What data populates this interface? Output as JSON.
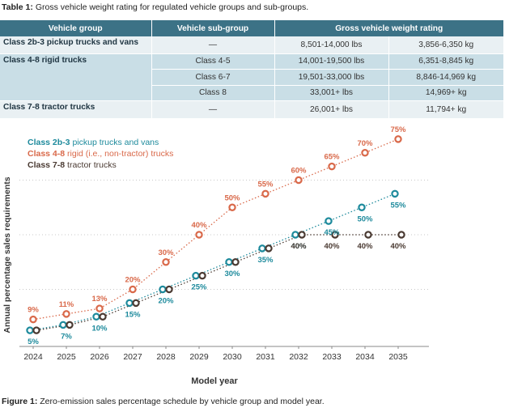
{
  "table": {
    "caption_label": "Table 1:",
    "caption_text": "Gross vehicle weight rating for regulated vehicle groups and sub-groups.",
    "headers": [
      "Vehicle group",
      "Vehicle sub-group",
      "Gross vehicle weight rating"
    ],
    "rows": [
      {
        "group": "Class 2b-3 pickup trucks and vans",
        "subgroup": "—",
        "lbs": "8,501-14,000 lbs",
        "kg": "3,856-6,350 kg"
      },
      {
        "group": "Class 4-8 rigid trucks",
        "subgroup": "Class 4-5",
        "lbs": "14,001-19,500 lbs",
        "kg": "6,351-8,845 kg"
      },
      {
        "group": "",
        "subgroup": "Class 6-7",
        "lbs": "19,501-33,000 lbs",
        "kg": "8,846-14,969 kg"
      },
      {
        "group": "",
        "subgroup": "Class 8",
        "lbs": "33,001+ lbs",
        "kg": "14,969+ kg"
      },
      {
        "group": "Class 7-8 tractor trucks",
        "subgroup": "—",
        "lbs": "26,001+ lbs",
        "kg": "11,794+ kg"
      }
    ]
  },
  "figure": {
    "caption_label": "Figure 1:",
    "caption_text": "Zero-emission sales percentage schedule by vehicle group and model year."
  },
  "chart_data": {
    "type": "line",
    "xlabel": "Model year",
    "ylabel": "Annual percentage sales requirements",
    "x": [
      2024,
      2025,
      2026,
      2027,
      2028,
      2029,
      2030,
      2031,
      2032,
      2033,
      2034,
      2035
    ],
    "ylim": [
      0,
      80
    ],
    "grid": "horizontal dotted",
    "legend_position": "top-left",
    "series": [
      {
        "name": "Class 2b-3 pickup trucks and vans",
        "bold": "Class 2b-3",
        "rest": " pickup trucks and vans",
        "color": "#1d8a9c",
        "values": [
          5,
          7,
          10,
          15,
          20,
          25,
          30,
          35,
          40,
          45,
          50,
          55
        ],
        "labels": [
          "5%",
          "7%",
          "10%",
          "15%",
          "20%",
          "25%",
          "30%",
          "35%",
          "40%",
          "45%",
          "50%",
          "55%"
        ]
      },
      {
        "name": "Class 4-8 rigid (i.e., non-tractor) trucks",
        "bold": "Class 4-8",
        "rest": " rigid (i.e., non-tractor) trucks",
        "color": "#d9694a",
        "values": [
          9,
          11,
          13,
          20,
          30,
          40,
          50,
          55,
          60,
          65,
          70,
          75
        ],
        "labels": [
          "9%",
          "11%",
          "13%",
          "20%",
          "30%",
          "40%",
          "50%",
          "55%",
          "60%",
          "65%",
          "70%",
          "75%"
        ]
      },
      {
        "name": "Class 7-8 tractor trucks",
        "bold": "Class 7-8",
        "rest": " tractor trucks",
        "color": "#4a3a32",
        "values": [
          5,
          7,
          10,
          15,
          20,
          25,
          30,
          35,
          40,
          40,
          40,
          40
        ],
        "labels": [
          "",
          "",
          "",
          "",
          "",
          "",
          "",
          "",
          "40%",
          "40%",
          "40%",
          "40%"
        ]
      }
    ]
  }
}
